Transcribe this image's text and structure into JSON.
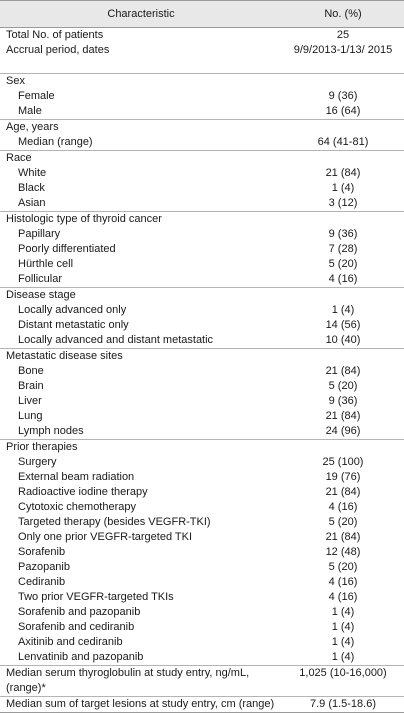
{
  "header": {
    "characteristic": "Characteristic",
    "value": "No. (%)"
  },
  "rows": [
    {
      "label": "Total No. of patients",
      "value": "25",
      "kind": "top"
    },
    {
      "label": "Accrual period, dates",
      "value": "9/9/2013-1/13/ 2015",
      "kind": "top",
      "tall": true
    },
    {
      "label": "Sex",
      "kind": "sec"
    },
    {
      "label": "Female",
      "value": "9 (36)",
      "kind": "sub"
    },
    {
      "label": "Male",
      "value": "16 (64)",
      "kind": "sub"
    },
    {
      "label": "Age, years",
      "kind": "sec"
    },
    {
      "label": "Median (range)",
      "value": "64 (41-81)",
      "kind": "sub"
    },
    {
      "label": "Race",
      "kind": "sec"
    },
    {
      "label": "White",
      "value": "21 (84)",
      "kind": "sub"
    },
    {
      "label": "Black",
      "value": "1 (4)",
      "kind": "sub"
    },
    {
      "label": "Asian",
      "value": "3 (12)",
      "kind": "sub"
    },
    {
      "label": "Histologic type of thyroid cancer",
      "kind": "sec"
    },
    {
      "label": "Papillary",
      "value": "9 (36)",
      "kind": "sub"
    },
    {
      "label": "Poorly differentiated",
      "value": "7 (28)",
      "kind": "sub"
    },
    {
      "label": "Hürthle cell",
      "value": "5 (20)",
      "kind": "sub"
    },
    {
      "label": "Follicular",
      "value": "4 (16)",
      "kind": "sub"
    },
    {
      "label": "Disease stage",
      "kind": "sec"
    },
    {
      "label": "Locally advanced only",
      "value": "1 (4)",
      "kind": "sub"
    },
    {
      "label": "Distant metastatic only",
      "value": "14 (56)",
      "kind": "sub"
    },
    {
      "label": "Locally advanced and distant metastatic",
      "value": "10 (40)",
      "kind": "sub"
    },
    {
      "label": "Metastatic disease sites",
      "kind": "sec"
    },
    {
      "label": "Bone",
      "value": "21 (84)",
      "kind": "sub"
    },
    {
      "label": "Brain",
      "value": "5 (20)",
      "kind": "sub"
    },
    {
      "label": "Liver",
      "value": "9 (36)",
      "kind": "sub"
    },
    {
      "label": "Lung",
      "value": "21 (84)",
      "kind": "sub"
    },
    {
      "label": "Lymph nodes",
      "value": "24 (96)",
      "kind": "sub"
    },
    {
      "label": "Prior therapies",
      "kind": "sec"
    },
    {
      "label": "Surgery",
      "value": "25 (100)",
      "kind": "sub"
    },
    {
      "label": "External beam radiation",
      "value": "19 (76)",
      "kind": "sub"
    },
    {
      "label": "Radioactive iodine therapy",
      "value": "21 (84)",
      "kind": "sub"
    },
    {
      "label": "Cytotoxic chemotherapy",
      "value": "4 (16)",
      "kind": "sub"
    },
    {
      "label": "Targeted therapy (besides VEGFR-TKI)",
      "value": "5 (20)",
      "kind": "sub"
    },
    {
      "label": "Only one prior VEGFR-targeted TKI",
      "value": "21 (84)",
      "kind": "sub"
    },
    {
      "label": "Sorafenib",
      "value": "12 (48)",
      "kind": "sub"
    },
    {
      "label": "Pazopanib",
      "value": "5 (20)",
      "kind": "sub"
    },
    {
      "label": "Cediranib",
      "value": "4 (16)",
      "kind": "sub"
    },
    {
      "label": "Two prior VEGFR-targeted TKIs",
      "value": "4 (16)",
      "kind": "sub"
    },
    {
      "label": "Sorafenib and pazopanib",
      "value": "1 (4)",
      "kind": "sub"
    },
    {
      "label": "Sorafenib and cediranib",
      "value": "1 (4)",
      "kind": "sub"
    },
    {
      "label": "Axitinib and cediranib",
      "value": "1 (4)",
      "kind": "sub"
    },
    {
      "label": "Lenvatinib and pazopanib",
      "value": "1 (4)",
      "kind": "sub"
    },
    {
      "label": "Median serum thyroglobulin at study entry, ng/mL, (range)*",
      "value": "1,025 (10-16,000)",
      "kind": "sec",
      "tall": true
    },
    {
      "label": "Median sum of target lesions at study entry, cm (range)",
      "value": "7.9 (1.5-18.6)",
      "kind": "sec",
      "last": true
    }
  ]
}
